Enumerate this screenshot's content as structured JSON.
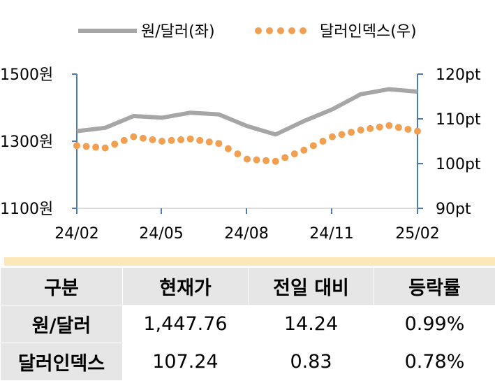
{
  "chart_data": {
    "type": "line",
    "x_tick_labels": [
      "24/02",
      "24/05",
      "24/08",
      "24/11",
      "25/02"
    ],
    "left_axis": {
      "ticks": [
        "1500원",
        "1300원",
        "1100원"
      ],
      "ylim": [
        1100,
        1500
      ]
    },
    "right_axis": {
      "ticks": [
        "120pt",
        "110pt",
        "100pt",
        "90pt"
      ],
      "ylim": [
        90,
        120
      ]
    },
    "legend": {
      "placement": "top"
    },
    "series": [
      {
        "name": "원/달러(좌)",
        "axis": "left",
        "style": "solid",
        "color": "#a6a6a6",
        "x": [
          "24/02",
          "24/03",
          "24/04",
          "24/05",
          "24/06",
          "24/07",
          "24/08",
          "24/09",
          "24/10",
          "24/11",
          "24/12",
          "25/01",
          "25/02"
        ],
        "values": [
          1330,
          1340,
          1375,
          1370,
          1385,
          1380,
          1345,
          1320,
          1360,
          1395,
          1440,
          1455,
          1447.76
        ]
      },
      {
        "name": "달러인덱스(우)",
        "axis": "right",
        "style": "dotted",
        "color": "#f0a050",
        "x": [
          "24/02",
          "24/03",
          "24/04",
          "24/05",
          "24/06",
          "24/07",
          "24/08",
          "24/09",
          "24/10",
          "24/11",
          "24/12",
          "25/01",
          "25/02"
        ],
        "values": [
          104,
          103.5,
          106,
          105,
          105.5,
          104.5,
          101,
          100.5,
          103,
          106,
          107.5,
          108.5,
          107.24
        ]
      }
    ]
  },
  "table": {
    "headers": [
      "구분",
      "현재가",
      "전일 대비",
      "등락률"
    ],
    "rows": [
      [
        "원/달러",
        "1,447.76",
        "14.24",
        "0.99%"
      ],
      [
        "달러인덱스",
        "107.24",
        "0.83",
        "0.78%"
      ]
    ]
  }
}
